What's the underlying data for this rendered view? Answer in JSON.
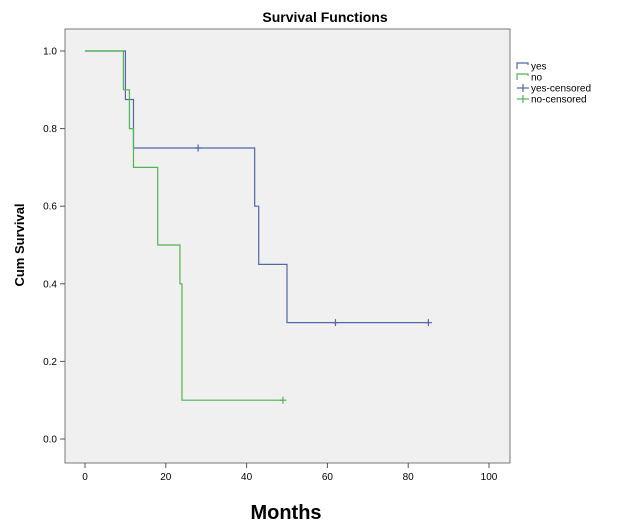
{
  "chart_data": {
    "type": "line",
    "subtype": "kaplan-meier-step",
    "title": "Survival Functions",
    "xlabel": "Months",
    "ylabel": "Cum Survival",
    "xlim": [
      0,
      100
    ],
    "ylim": [
      0,
      1
    ],
    "x_ticks": [
      "0",
      "20",
      "40",
      "60",
      "80",
      "100"
    ],
    "y_ticks": [
      "0.0",
      "0.2",
      "0.4",
      "0.6",
      "0.8",
      "1.0"
    ],
    "grid": false,
    "legend_position": "top-right",
    "legend": [
      "yes",
      "no",
      "yes-censored",
      "no-censored"
    ],
    "series": [
      {
        "name": "yes",
        "color": "#5068a8",
        "steps": [
          {
            "x": 0,
            "y": 1.0
          },
          {
            "x": 10,
            "y": 0.875
          },
          {
            "x": 12,
            "y": 0.75
          },
          {
            "x": 42,
            "y": 0.6
          },
          {
            "x": 43,
            "y": 0.45
          },
          {
            "x": 50,
            "y": 0.3
          }
        ],
        "end_x": 85,
        "censored": [
          {
            "x": 28,
            "y": 0.75
          },
          {
            "x": 62,
            "y": 0.3
          },
          {
            "x": 85,
            "y": 0.3
          }
        ]
      },
      {
        "name": "no",
        "color": "#50b450",
        "steps": [
          {
            "x": 0,
            "y": 1.0
          },
          {
            "x": 9.5,
            "y": 0.9
          },
          {
            "x": 11,
            "y": 0.8
          },
          {
            "x": 12,
            "y": 0.7
          },
          {
            "x": 18,
            "y": 0.5
          },
          {
            "x": 23.5,
            "y": 0.4
          },
          {
            "x": 24,
            "y": 0.1
          }
        ],
        "end_x": 49,
        "censored": [
          {
            "x": 49,
            "y": 0.1
          }
        ]
      }
    ]
  }
}
